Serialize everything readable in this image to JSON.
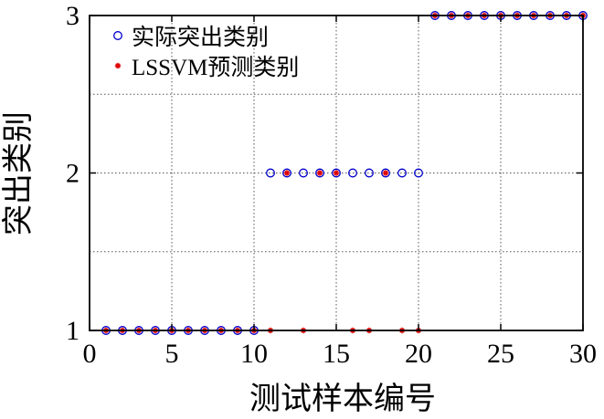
{
  "chart_data": {
    "type": "scatter",
    "xlabel": "测试样本编号",
    "ylabel": "突出类别",
    "xlim": [
      0,
      30
    ],
    "ylim": [
      1,
      3
    ],
    "x_ticks": [
      0,
      5,
      10,
      15,
      20,
      25,
      30
    ],
    "y_ticks": [
      1,
      2,
      3
    ],
    "grid": true,
    "grid_style": "dotted",
    "legend_position": "top-left",
    "series": [
      {
        "name": "实际突出类别",
        "marker": "circle",
        "color": "#0000cc",
        "x": [
          1,
          2,
          3,
          4,
          5,
          6,
          7,
          8,
          9,
          10,
          11,
          12,
          13,
          14,
          15,
          16,
          17,
          18,
          19,
          20,
          21,
          22,
          23,
          24,
          25,
          26,
          27,
          28,
          29,
          30
        ],
        "y": [
          1,
          1,
          1,
          1,
          1,
          1,
          1,
          1,
          1,
          1,
          2,
          2,
          2,
          2,
          2,
          2,
          2,
          2,
          2,
          2,
          3,
          3,
          3,
          3,
          3,
          3,
          3,
          3,
          3,
          3
        ]
      },
      {
        "name": "LSSVM预测类别",
        "marker": "asterisk",
        "color": "#dd0000",
        "x": [
          1,
          2,
          3,
          4,
          5,
          6,
          7,
          8,
          9,
          10,
          11,
          12,
          13,
          14,
          15,
          16,
          17,
          18,
          19,
          20,
          21,
          22,
          23,
          24,
          25,
          26,
          27,
          28,
          29,
          30
        ],
        "y": [
          1,
          1,
          1,
          1,
          1,
          1,
          1,
          1,
          1,
          1,
          1,
          2,
          1,
          2,
          2,
          1,
          1,
          2,
          1,
          1,
          3,
          3,
          3,
          3,
          3,
          3,
          3,
          3,
          3,
          3
        ]
      }
    ]
  }
}
